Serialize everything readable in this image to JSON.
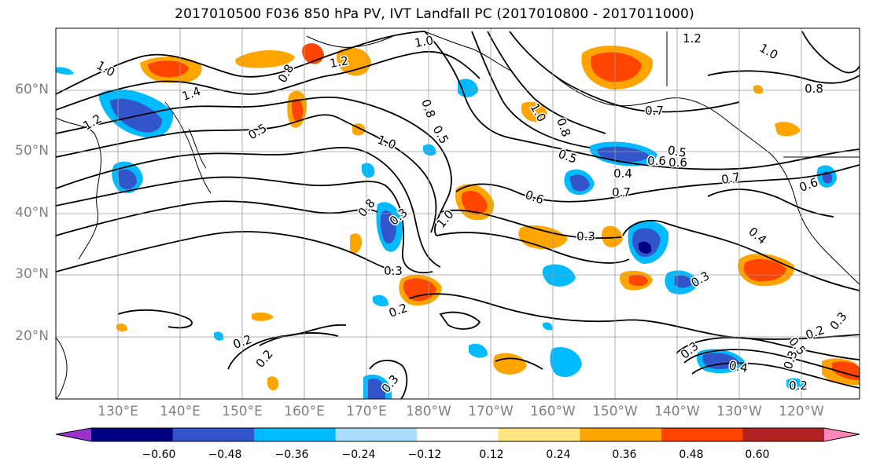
{
  "title": "2017010500 F036 850 hPa PV, IVT Landfall PC (2017010800 - 2017011000)",
  "map": {
    "lat_labels": [
      "60°N",
      "50°N",
      "40°N",
      "30°N",
      "20°N"
    ],
    "lon_labels": [
      "130°E",
      "140°E",
      "150°E",
      "160°E",
      "170°E",
      "180°W",
      "170°W",
      "160°W",
      "150°W",
      "140°W",
      "130°W",
      "120°W"
    ],
    "contour_labels": [
      "1.0",
      "1.2",
      "1.4",
      "0.5",
      "1.2",
      "0.8",
      "1.0",
      "0.8",
      "1.0",
      "0.5",
      "1.2",
      "1.0",
      "0.8",
      "0.7",
      "1.0",
      "0.8",
      "0.5",
      "0.5",
      "0.4",
      "0.7",
      "0.6",
      "0.6",
      "0.8",
      "0.6",
      "0.7",
      "0.6",
      "0.3",
      "1.0",
      "0.3",
      "0.3",
      "0.3",
      "0.4",
      "0.2",
      "0.2",
      "0.2",
      "0.3",
      "0.2",
      "0.3",
      "0.3",
      "0.4",
      "0.5",
      "0.2",
      "0.3"
    ]
  },
  "colorbar": {
    "colors": [
      "#9933cc",
      "#000080",
      "#3355cc",
      "#00bbff",
      "#aaddff",
      "#ffffff",
      "#ffe680",
      "#ffa500",
      "#ff4500",
      "#b22222",
      "#ff88bb"
    ],
    "tick_labels": [
      "−0.60",
      "−0.48",
      "−0.36",
      "−0.24",
      "−0.12",
      "0.12",
      "0.24",
      "0.36",
      "0.48",
      "0.60"
    ]
  }
}
